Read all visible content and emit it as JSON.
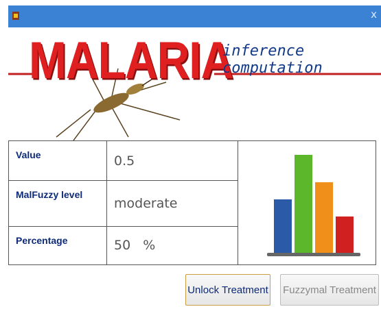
{
  "window": {
    "close": "x"
  },
  "banner": {
    "title": "MALARIA",
    "subtitle": "inference computation"
  },
  "table": {
    "rows": [
      [
        "Value",
        "0.5"
      ],
      [
        "MalFuzzy level",
        "moderate"
      ],
      [
        "Percentage",
        "50   %"
      ]
    ]
  },
  "buttons": [
    "Unlock Treatment",
    "Fuzzymal Treatment"
  ]
}
